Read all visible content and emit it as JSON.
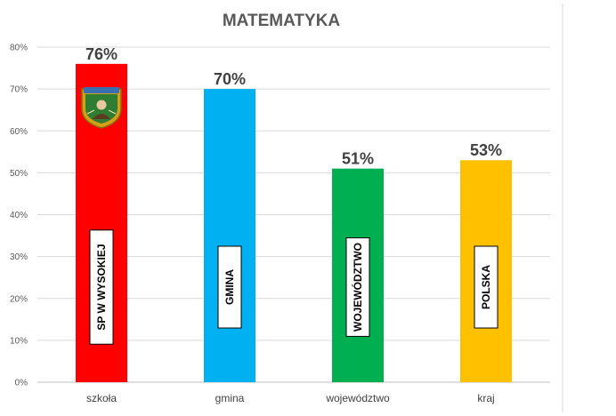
{
  "chart_data": {
    "type": "bar",
    "title": "MATEMATYKA",
    "categories": [
      "szkoła",
      "gmina",
      "województwo",
      "kraj"
    ],
    "values": [
      76,
      70,
      51,
      53
    ],
    "value_labels": [
      "76%",
      "70%",
      "51%",
      "53%"
    ],
    "bar_box_labels": [
      "SP W WYSOKIEJ",
      "GMINA",
      "WOJEWÓDZTWO",
      "POLSKA"
    ],
    "colors": [
      "#ff0000",
      "#00b0f0",
      "#00b050",
      "#ffc000"
    ],
    "ylim": [
      0,
      80
    ],
    "y_ticks": [
      "0%",
      "10%",
      "20%",
      "30%",
      "40%",
      "50%",
      "60%",
      "70%",
      "80%"
    ],
    "grid": true,
    "legend": "none",
    "xlabel": "",
    "ylabel": ""
  }
}
